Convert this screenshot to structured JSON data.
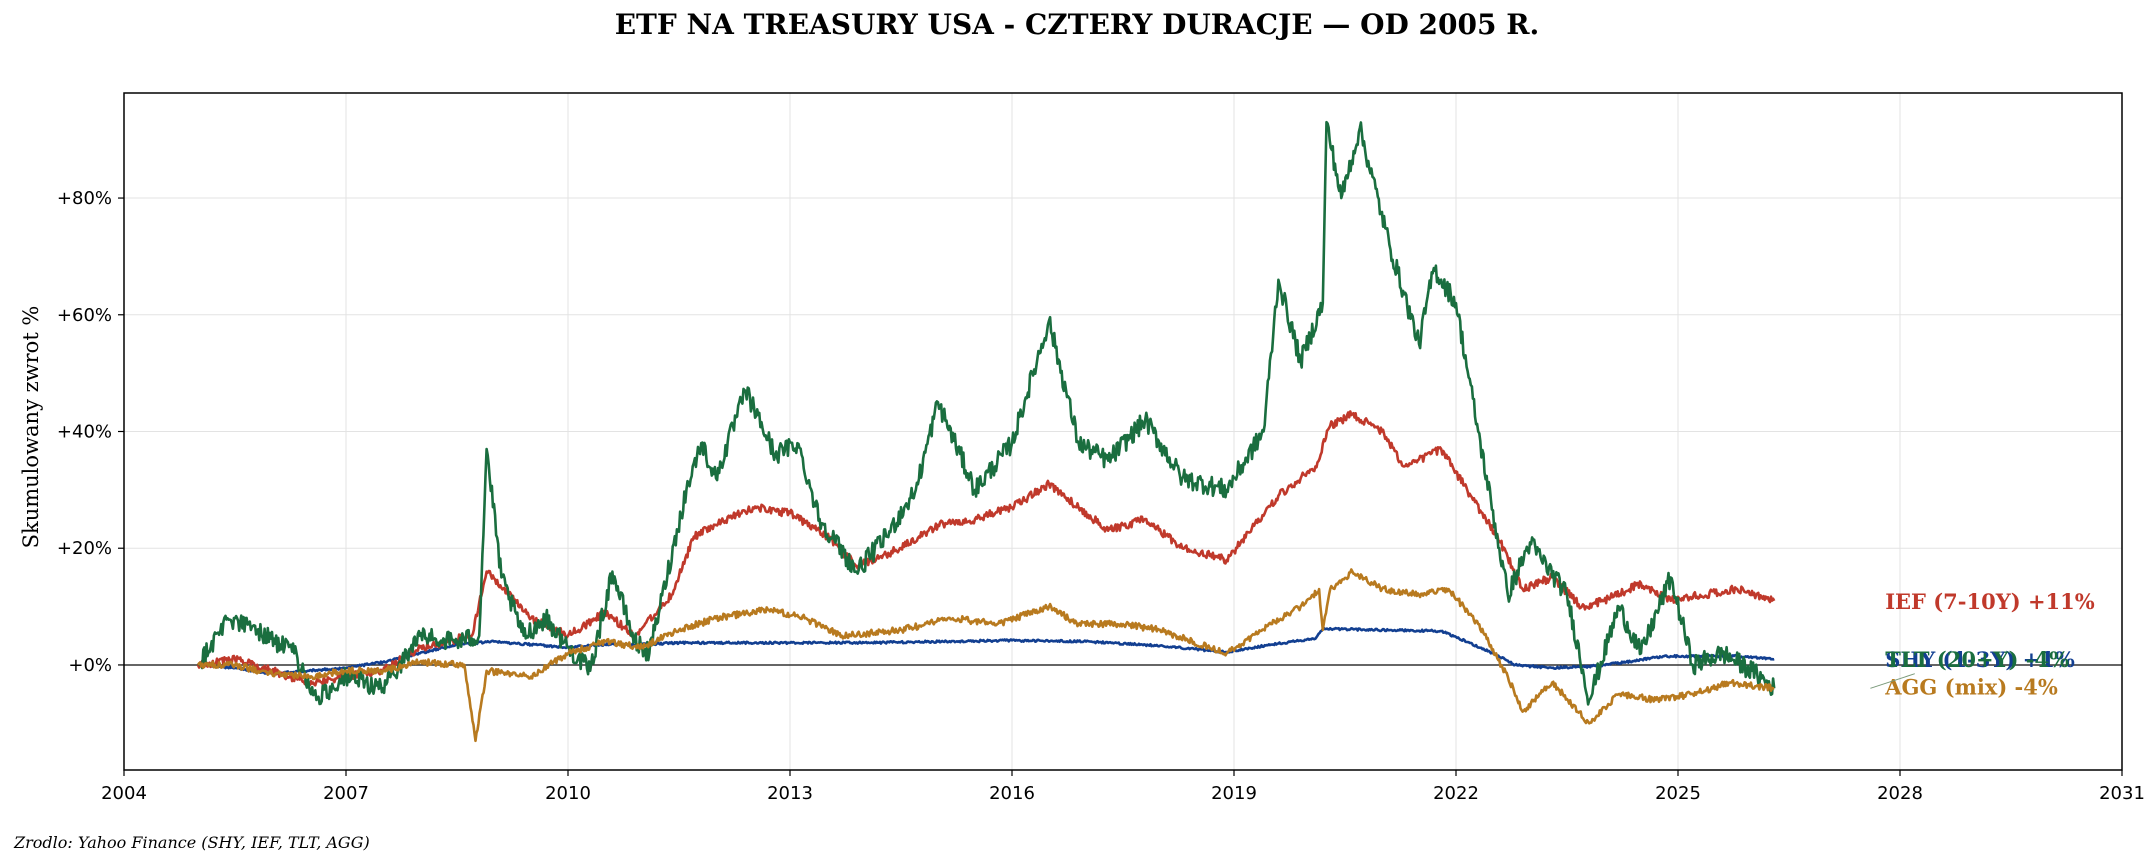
{
  "chart_data": {
    "type": "line",
    "title": "ETF NA TREASURY USA - CZTERY DURACJE — OD 2005 R.",
    "ylabel": "Skumulowany zwrot %",
    "source": "Zrodlo: Yahoo Finance (SHY, IEF, TLT, AGG)",
    "xlim": [
      2004,
      2031
    ],
    "ylim": [
      -18,
      98
    ],
    "x_ticks": [
      2004,
      2007,
      2010,
      2013,
      2016,
      2019,
      2022,
      2025,
      2028,
      2031
    ],
    "y_ticks": [
      0,
      20,
      40,
      60,
      80
    ],
    "y_tick_labels": [
      "+0%",
      "+20%",
      "+40%",
      "+60%",
      "+80%"
    ],
    "grid": true,
    "zero_line": true,
    "series": [
      {
        "name": "SHY (1-3Y)",
        "end_label": "SHY (1-3Y)  +1%",
        "color": "#123f91",
        "points": [
          [
            2005.0,
            0
          ],
          [
            2005.5,
            -0.5
          ],
          [
            2006.0,
            -1.5
          ],
          [
            2006.5,
            -1
          ],
          [
            2007.0,
            -0.5
          ],
          [
            2007.5,
            0.5
          ],
          [
            2008.0,
            2
          ],
          [
            2008.5,
            3.5
          ],
          [
            2009.0,
            4
          ],
          [
            2009.5,
            3.5
          ],
          [
            2010.0,
            3
          ],
          [
            2010.5,
            3.5
          ],
          [
            2011.0,
            3.5
          ],
          [
            2011.5,
            3.8
          ],
          [
            2012.0,
            3.8
          ],
          [
            2013.0,
            3.8
          ],
          [
            2014.0,
            3.8
          ],
          [
            2015.0,
            4
          ],
          [
            2016.0,
            4.2
          ],
          [
            2017.0,
            4
          ],
          [
            2018.0,
            3.3
          ],
          [
            2018.9,
            2.2
          ],
          [
            2019.5,
            3.5
          ],
          [
            2020.1,
            4.5
          ],
          [
            2020.2,
            6.2
          ],
          [
            2021.0,
            6
          ],
          [
            2021.8,
            5.8
          ],
          [
            2022.0,
            4.8
          ],
          [
            2022.5,
            2
          ],
          [
            2022.8,
            0
          ],
          [
            2023.3,
            -0.5
          ],
          [
            2023.8,
            -0.3
          ],
          [
            2024.3,
            0.5
          ],
          [
            2024.8,
            1.5
          ],
          [
            2025.3,
            1.5
          ],
          [
            2025.8,
            1.5
          ],
          [
            2026.3,
            1
          ]
        ]
      },
      {
        "name": "IEF (7-10Y)",
        "end_label": "IEF (7-10Y)  +11%",
        "color": "#c0392b",
        "points": [
          [
            2005.0,
            0
          ],
          [
            2005.5,
            1
          ],
          [
            2006.0,
            -1
          ],
          [
            2006.5,
            -3
          ],
          [
            2007.0,
            -2
          ],
          [
            2007.5,
            -1
          ],
          [
            2008.0,
            3
          ],
          [
            2008.7,
            5
          ],
          [
            2008.9,
            16
          ],
          [
            2009.2,
            12
          ],
          [
            2009.5,
            8
          ],
          [
            2010.0,
            5
          ],
          [
            2010.5,
            9
          ],
          [
            2010.9,
            5
          ],
          [
            2011.4,
            12
          ],
          [
            2011.7,
            22
          ],
          [
            2012.0,
            24
          ],
          [
            2012.5,
            27
          ],
          [
            2013.0,
            26
          ],
          [
            2013.5,
            22
          ],
          [
            2013.9,
            17
          ],
          [
            2014.5,
            20
          ],
          [
            2015.0,
            24
          ],
          [
            2015.5,
            25
          ],
          [
            2016.0,
            27
          ],
          [
            2016.5,
            31
          ],
          [
            2016.9,
            27
          ],
          [
            2017.3,
            23
          ],
          [
            2017.8,
            25
          ],
          [
            2018.3,
            20
          ],
          [
            2018.9,
            18
          ],
          [
            2019.6,
            29
          ],
          [
            2020.1,
            34
          ],
          [
            2020.3,
            41
          ],
          [
            2020.6,
            43
          ],
          [
            2021.0,
            40
          ],
          [
            2021.3,
            34
          ],
          [
            2021.8,
            37
          ],
          [
            2022.2,
            29
          ],
          [
            2022.6,
            21
          ],
          [
            2022.9,
            13
          ],
          [
            2023.3,
            15
          ],
          [
            2023.7,
            10
          ],
          [
            2024.0,
            11
          ],
          [
            2024.5,
            14
          ],
          [
            2024.9,
            11
          ],
          [
            2025.3,
            12
          ],
          [
            2025.8,
            13
          ],
          [
            2026.3,
            11
          ]
        ]
      },
      {
        "name": "TLT (20+Y)",
        "end_label": "TLT (20+Y)  -4%",
        "color": "#1a6e3f",
        "points": [
          [
            2005.0,
            0
          ],
          [
            2005.4,
            8
          ],
          [
            2005.8,
            6
          ],
          [
            2006.3,
            2
          ],
          [
            2006.6,
            -6
          ],
          [
            2007.0,
            -2
          ],
          [
            2007.5,
            -4
          ],
          [
            2008.0,
            5
          ],
          [
            2008.5,
            4
          ],
          [
            2008.8,
            5
          ],
          [
            2008.9,
            37
          ],
          [
            2009.1,
            15
          ],
          [
            2009.4,
            5
          ],
          [
            2009.7,
            8
          ],
          [
            2010.0,
            3
          ],
          [
            2010.3,
            -1
          ],
          [
            2010.6,
            16
          ],
          [
            2010.9,
            4
          ],
          [
            2011.1,
            2
          ],
          [
            2011.6,
            30
          ],
          [
            2011.8,
            38
          ],
          [
            2012.0,
            32
          ],
          [
            2012.4,
            47
          ],
          [
            2012.8,
            36
          ],
          [
            2013.1,
            38
          ],
          [
            2013.4,
            25
          ],
          [
            2013.9,
            16
          ],
          [
            2014.3,
            22
          ],
          [
            2014.7,
            30
          ],
          [
            2015.0,
            45
          ],
          [
            2015.5,
            30
          ],
          [
            2016.0,
            38
          ],
          [
            2016.5,
            59
          ],
          [
            2016.9,
            38
          ],
          [
            2017.3,
            35
          ],
          [
            2017.8,
            42
          ],
          [
            2018.3,
            32
          ],
          [
            2018.9,
            30
          ],
          [
            2019.4,
            40
          ],
          [
            2019.6,
            66
          ],
          [
            2019.9,
            52
          ],
          [
            2020.2,
            62
          ],
          [
            2020.25,
            93
          ],
          [
            2020.45,
            80
          ],
          [
            2020.7,
            92
          ],
          [
            2021.1,
            72
          ],
          [
            2021.5,
            55
          ],
          [
            2021.7,
            68
          ],
          [
            2022.0,
            62
          ],
          [
            2022.3,
            40
          ],
          [
            2022.7,
            12
          ],
          [
            2023.0,
            21
          ],
          [
            2023.5,
            12
          ],
          [
            2023.8,
            -6
          ],
          [
            2024.2,
            10
          ],
          [
            2024.5,
            2
          ],
          [
            2024.9,
            15
          ],
          [
            2025.2,
            0
          ],
          [
            2025.6,
            2
          ],
          [
            2026.0,
            -1
          ],
          [
            2026.3,
            -4
          ]
        ]
      },
      {
        "name": "AGG (mix)",
        "end_label": "AGG (mix)  -4%",
        "color": "#b87a1f",
        "points": [
          [
            2005.0,
            0
          ],
          [
            2005.5,
            0
          ],
          [
            2006.0,
            -1.5
          ],
          [
            2006.5,
            -2
          ],
          [
            2007.0,
            -1
          ],
          [
            2007.5,
            -1
          ],
          [
            2008.0,
            0.5
          ],
          [
            2008.6,
            0
          ],
          [
            2008.75,
            -13
          ],
          [
            2008.9,
            -1
          ],
          [
            2009.5,
            -2
          ],
          [
            2010.0,
            2
          ],
          [
            2010.5,
            4
          ],
          [
            2011.0,
            3
          ],
          [
            2011.5,
            6
          ],
          [
            2012.0,
            8
          ],
          [
            2012.7,
            9.5
          ],
          [
            2013.2,
            8
          ],
          [
            2013.7,
            5
          ],
          [
            2014.5,
            6
          ],
          [
            2015.2,
            8
          ],
          [
            2015.8,
            7
          ],
          [
            2016.5,
            10
          ],
          [
            2016.9,
            7
          ],
          [
            2017.5,
            7
          ],
          [
            2018.0,
            6
          ],
          [
            2018.9,
            2
          ],
          [
            2019.5,
            7
          ],
          [
            2019.9,
            10
          ],
          [
            2020.15,
            13
          ],
          [
            2020.2,
            6
          ],
          [
            2020.3,
            13
          ],
          [
            2020.6,
            16
          ],
          [
            2021.0,
            13
          ],
          [
            2021.5,
            12
          ],
          [
            2021.9,
            13
          ],
          [
            2022.3,
            7
          ],
          [
            2022.7,
            -2
          ],
          [
            2022.9,
            -8
          ],
          [
            2023.3,
            -3
          ],
          [
            2023.8,
            -10
          ],
          [
            2024.2,
            -5
          ],
          [
            2024.7,
            -6
          ],
          [
            2025.2,
            -5
          ],
          [
            2025.7,
            -3
          ],
          [
            2026.3,
            -4
          ]
        ]
      }
    ]
  }
}
